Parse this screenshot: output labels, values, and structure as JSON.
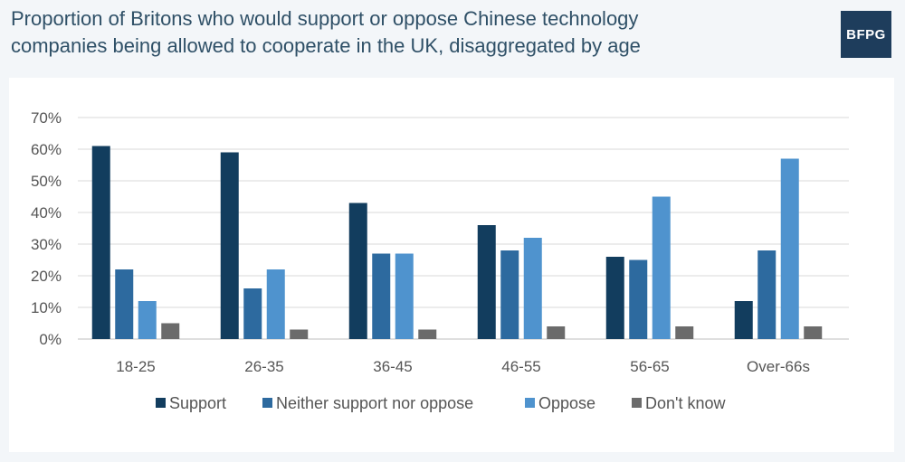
{
  "header": {
    "title_line1": "Proportion of Britons who would support or oppose Chinese technology",
    "title_line2": "companies being allowed to cooperate in the UK, disaggregated by age",
    "logo_text": "BFPG"
  },
  "chart_data": {
    "type": "bar",
    "title": "Proportion of Britons who would support or oppose Chinese technology companies being allowed to cooperate in the UK, disaggregated by age",
    "xlabel": "",
    "ylabel": "",
    "ylim": [
      0,
      70
    ],
    "yticks": [
      "0%",
      "10%",
      "20%",
      "30%",
      "40%",
      "50%",
      "60%",
      "70%"
    ],
    "grid": true,
    "legend_position": "bottom",
    "categories": [
      "18-25",
      "26-35",
      "36-45",
      "46-55",
      "56-65",
      "Over-66s"
    ],
    "series": [
      {
        "name": "Support",
        "color": "#123d5e",
        "values": [
          61,
          59,
          43,
          36,
          26,
          12
        ]
      },
      {
        "name": "Neither support nor oppose",
        "color": "#2d6a9f",
        "values": [
          22,
          16,
          27,
          28,
          25,
          28
        ]
      },
      {
        "name": "Oppose",
        "color": "#4f93ce",
        "values": [
          12,
          22,
          27,
          32,
          45,
          57
        ]
      },
      {
        "name": "Don't know",
        "color": "#6b6b6b",
        "values": [
          5,
          3,
          3,
          4,
          4,
          4
        ]
      }
    ]
  }
}
